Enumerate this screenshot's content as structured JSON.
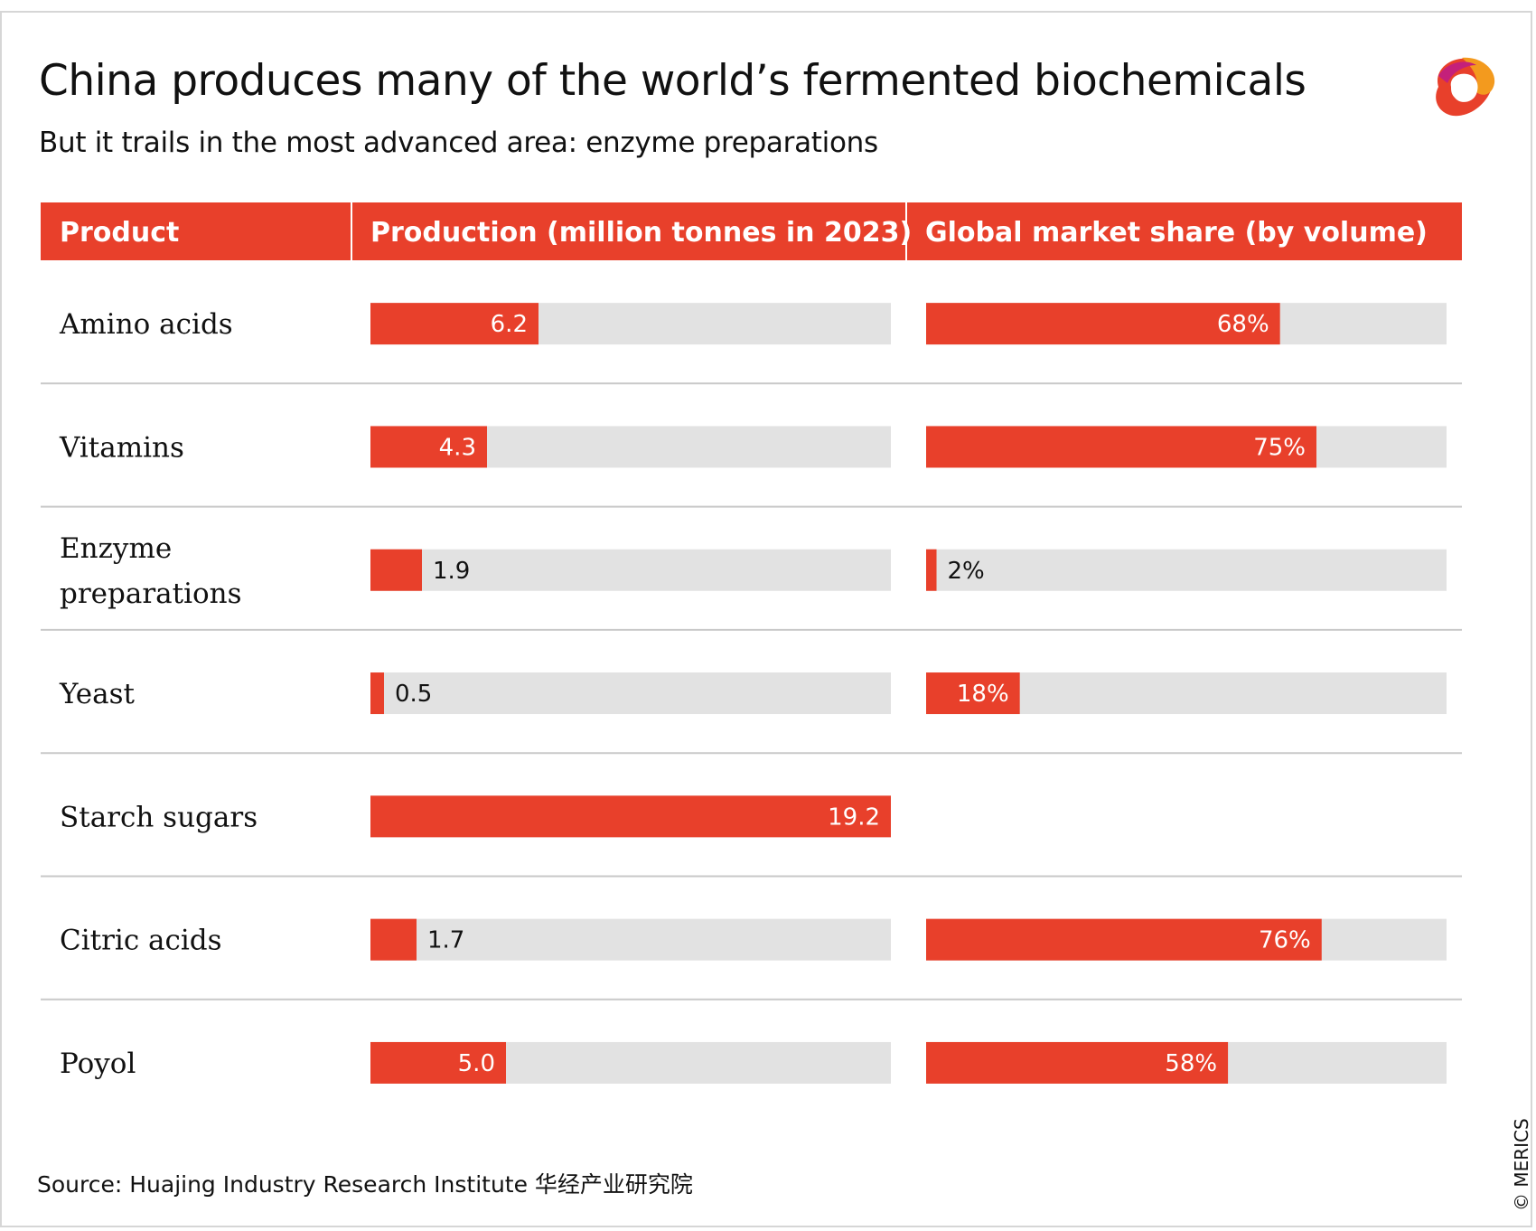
{
  "header": {
    "title": "China produces many of the world’s fermented biochemicals",
    "subtitle": "But it trails in the most advanced area: enzyme preparations"
  },
  "footer": {
    "source": "Source: Huajing Industry Research Institute 华经产业研究院",
    "credit": "© MERICS",
    "logo_name": "merics-logo"
  },
  "colors": {
    "accent": "#e8402b",
    "track": "#e2e2e2",
    "rule": "#c9c9c9",
    "text": "#111111"
  },
  "chart_data": {
    "type": "table",
    "columns": [
      "Product",
      "Production (million tonnes in 2023)",
      "Global market share (by volume)"
    ],
    "rows": [
      {
        "product": "Amino acids",
        "production": 6.2,
        "production_label": "6.2",
        "share": 68,
        "share_label": "68%"
      },
      {
        "product": "Vitamins",
        "production": 4.3,
        "production_label": "4.3",
        "share": 75,
        "share_label": "75%"
      },
      {
        "product": "Enzyme preparations",
        "production": 1.9,
        "production_label": "1.9",
        "share": 2,
        "share_label": "2%"
      },
      {
        "product": "Yeast",
        "production": 0.5,
        "production_label": "0.5",
        "share": 18,
        "share_label": "18%"
      },
      {
        "product": "Starch sugars",
        "production": 19.2,
        "production_label": "19.2",
        "share": null,
        "share_label": ""
      },
      {
        "product": "Citric acids",
        "production": 1.7,
        "production_label": "1.7",
        "share": 76,
        "share_label": "76%"
      },
      {
        "product": "Poyol",
        "production": 5.0,
        "production_label": "5.0",
        "share": 58,
        "share_label": "58%"
      }
    ],
    "production_range": [
      0,
      19.2
    ],
    "share_range": [
      0,
      100
    ]
  }
}
